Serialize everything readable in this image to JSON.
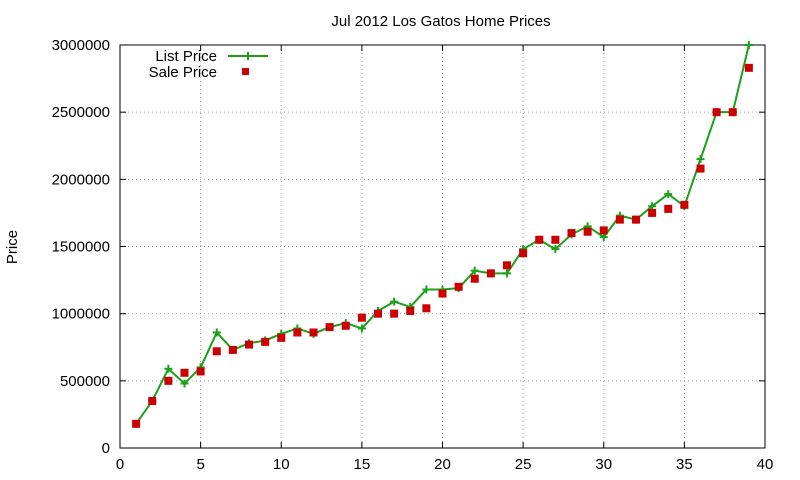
{
  "chart_data": {
    "type": "line",
    "title": "Jul 2012 Los Gatos Home Prices",
    "xlabel": "",
    "ylabel": "Price",
    "xlim": [
      0,
      40
    ],
    "ylim": [
      0,
      3000000
    ],
    "xticks": [
      0,
      5,
      10,
      15,
      20,
      25,
      30,
      35,
      40
    ],
    "yticks": [
      0,
      500000,
      1000000,
      1500000,
      2000000,
      2500000,
      3000000
    ],
    "grid": true,
    "legend_position": "top-left",
    "series": [
      {
        "name": "List Price",
        "style": "line+cross",
        "color": "#1aa01a",
        "x": [
          1,
          2,
          3,
          4,
          5,
          6,
          7,
          8,
          9,
          10,
          11,
          12,
          13,
          14,
          15,
          16,
          17,
          18,
          19,
          20,
          21,
          22,
          23,
          24,
          25,
          26,
          27,
          28,
          29,
          30,
          31,
          32,
          33,
          34,
          35,
          36,
          37,
          38,
          39
        ],
        "y": [
          180000,
          350000,
          590000,
          480000,
          600000,
          860000,
          730000,
          780000,
          800000,
          850000,
          890000,
          850000,
          900000,
          930000,
          890000,
          1020000,
          1090000,
          1050000,
          1180000,
          1180000,
          1190000,
          1320000,
          1300000,
          1300000,
          1480000,
          1550000,
          1480000,
          1590000,
          1650000,
          1570000,
          1730000,
          1700000,
          1800000,
          1890000,
          1800000,
          2150000,
          2500000,
          2500000,
          3000000
        ]
      },
      {
        "name": "Sale Price",
        "style": "square",
        "color": "#cc0000",
        "x": [
          1,
          2,
          3,
          4,
          5,
          6,
          7,
          8,
          9,
          10,
          11,
          12,
          13,
          14,
          15,
          16,
          17,
          18,
          19,
          20,
          21,
          22,
          23,
          24,
          25,
          26,
          27,
          28,
          29,
          30,
          31,
          32,
          33,
          34,
          35,
          36,
          37,
          38,
          39
        ],
        "y": [
          180000,
          350000,
          500000,
          560000,
          570000,
          720000,
          730000,
          770000,
          790000,
          820000,
          860000,
          860000,
          900000,
          910000,
          970000,
          1000000,
          1000000,
          1020000,
          1040000,
          1150000,
          1200000,
          1260000,
          1300000,
          1360000,
          1450000,
          1550000,
          1550000,
          1600000,
          1610000,
          1620000,
          1700000,
          1700000,
          1750000,
          1780000,
          1810000,
          2080000,
          2500000,
          2500000,
          2830000
        ]
      }
    ]
  }
}
